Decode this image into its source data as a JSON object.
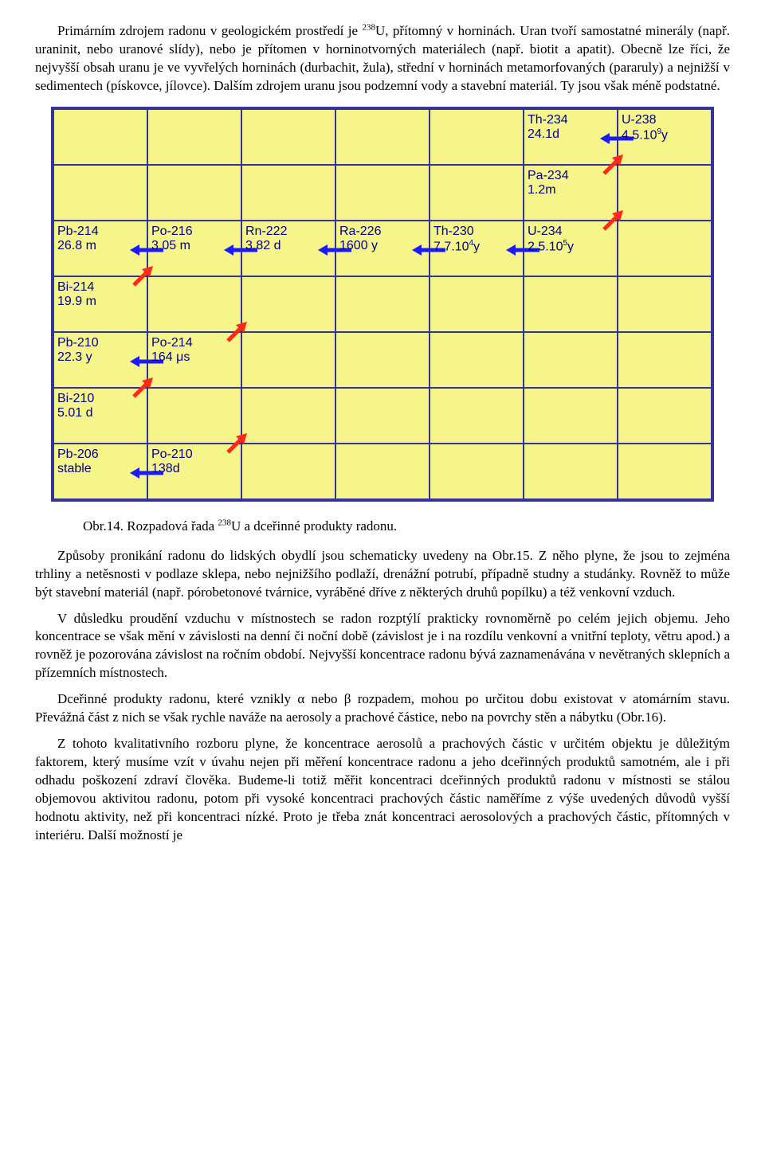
{
  "paragraphs": {
    "p1a": "Primárním zdrojem radonu v geologickém prostředí je ",
    "p1_iso": "238",
    "p1b": "U, přítomný v horninách. Uran tvoří samostatné minerály (např. uraninit, nebo uranové slídy), nebo je přítomen v horninotvorných materiálech (např. biotit a apatit). Obecně lze říci, že nejvyšší obsah uranu je ve vyvřelých horninách (durbachit, žula), střední v horninách metamorfovaných (pararuly) a nejnižší v sedimentech (pískovce, jílovce). Dalším zdrojem uranu jsou podzemní vody a stavební materiál. Ty jsou však méně podstatné.",
    "caption_a": "Obr.14. Rozpadová řada ",
    "caption_iso": "238",
    "caption_b": "U a dceřinné produkty radonu.",
    "p2": "Způsoby pronikání radonu do lidských obydlí jsou schematicky uvedeny na Obr.15. Z něho plyne, že jsou to zejména trhliny a netěsnosti v podlaze sklepa, nebo nejnižšího podlaží, drenážní potrubí, případně studny a studánky. Rovněž to může být stavební materiál (např. pórobetonové tvárnice, vyráběné dříve z některých druhů popílku) a též venkovní vzduch.",
    "p3": "V důsledku proudění vzduchu v místnostech se radon rozptýlí prakticky rovnoměrně po celém jejich objemu. Jeho koncentrace se však mění v závislosti na denní či noční době (závislost je i na rozdílu venkovní a vnitřní teploty, větru apod.) a rovněž je pozorována závislost na ročním období. Nejvyšší koncentrace radonu bývá zaznamenávána v nevětraných sklepních a přízemních místnostech.",
    "p4": "Dceřinné produkty radonu, které vznikly α nebo β rozpadem, mohou po určitou dobu existovat v atomárním stavu. Převážná část z nich se však rychle naváže na aerosoly a prachové částice, nebo na povrchy stěn a nábytku (Obr.16).",
    "p5": "Z tohoto kvalitativního rozboru plyne, že koncentrace aerosolů a prachových částic v určitém objektu je důležitým faktorem, který musíme vzít v úvahu nejen při měření koncentrace radonu a jeho dceřinných produktů samotném, ale i při odhadu poškození zdraví člověka. Budeme-li totiž měřit koncentraci dceřinných produktů radonu v místnosti se stálou objemovou aktivitou radonu, potom při vysoké koncentraci prachových částic naměříme z výše uvedených důvodů vyšší hodnotu aktivity, než při koncentraci nízké. Proto je třeba znát koncentraci aerosolových a prachových částic, přítomných v interiéru. Další možností je"
  },
  "chart": {
    "cols": 7,
    "rows": 7,
    "bg_color": "#f5f58a",
    "border_color": "#333399",
    "alpha_color": "#1a1aff",
    "beta_color": "#ff2a1a",
    "cells": [
      {
        "row": 0,
        "col": 5,
        "line1": "Th-234",
        "line2": "24.1d",
        "alpha": true
      },
      {
        "row": 0,
        "col": 6,
        "line1": "U-238",
        "line2_html": "4.5.10<span class='sup'>9</span>y"
      },
      {
        "row": 1,
        "col": 5,
        "line1": "Pa-234",
        "line2": "1.2m",
        "beta": true
      },
      {
        "row": 2,
        "col": 0,
        "line1": "Pb-214",
        "line2": "26.8 m",
        "alpha": true
      },
      {
        "row": 2,
        "col": 1,
        "line1": "Po-216",
        "line2": "3.05 m",
        "alpha": true
      },
      {
        "row": 2,
        "col": 2,
        "line1": "Rn-222",
        "line2": "3.82 d",
        "alpha": true
      },
      {
        "row": 2,
        "col": 3,
        "line1": "Ra-226",
        "line2": "1600 y",
        "alpha": true
      },
      {
        "row": 2,
        "col": 4,
        "line1": "Th-230",
        "line2_html": "7.7.10<span class='sup'>4</span>y",
        "alpha": true
      },
      {
        "row": 2,
        "col": 5,
        "line1": "U-234",
        "line2_html": "2.5.10<span class='sup'>5</span>y",
        "beta": true
      },
      {
        "row": 3,
        "col": 0,
        "line1": "Bi-214",
        "line2": "19.9 m",
        "beta": true
      },
      {
        "row": 4,
        "col": 0,
        "line1": "Pb-210",
        "line2": "22.3 y",
        "alpha": true
      },
      {
        "row": 4,
        "col": 1,
        "line1": "Po-214",
        "line2": "164 μs",
        "beta": true
      },
      {
        "row": 5,
        "col": 0,
        "line1": "Bi-210",
        "line2": "5.01 d",
        "beta": true
      },
      {
        "row": 6,
        "col": 0,
        "line1": "Pb-206",
        "line2": "stable",
        "alpha": true
      },
      {
        "row": 6,
        "col": 1,
        "line1": "Po-210",
        "line2": "138d",
        "beta": true
      }
    ]
  }
}
